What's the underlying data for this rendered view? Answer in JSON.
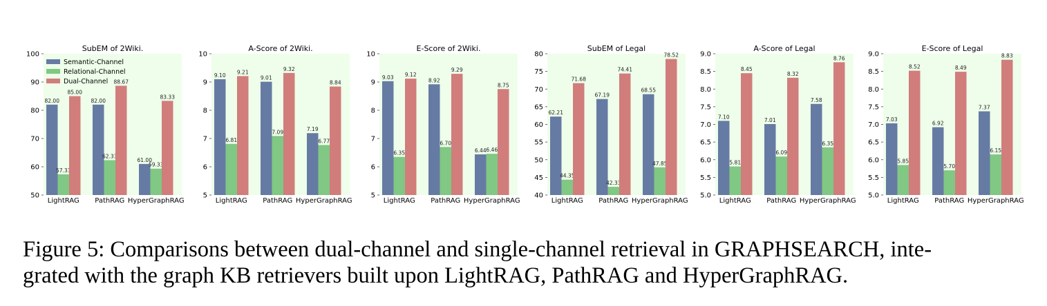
{
  "colors": {
    "semantic": "#667ba3",
    "relational": "#80c883",
    "dual": "#d17d7c",
    "plot_bg": "#eefeea"
  },
  "legend": {
    "placement": "top-left",
    "entries": [
      "Semantic-Channel",
      "Relational-Channel",
      "Dual-Channel"
    ]
  },
  "chart_data": [
    {
      "type": "bar",
      "title": "SubEM of 2Wiki.",
      "categories": [
        "LightRAG",
        "PathRAG",
        "HyperGraphRAG"
      ],
      "ylim": [
        50,
        100
      ],
      "yticks": [
        50,
        60,
        70,
        80,
        90,
        100
      ],
      "ytick_labels": [
        "50",
        "60",
        "70",
        "80",
        "90",
        "100"
      ],
      "series": [
        {
          "name": "Semantic-Channel",
          "values": [
            82.0,
            82.0,
            61.0
          ],
          "labels": [
            "82.00",
            "82.00",
            "61.00"
          ]
        },
        {
          "name": "Relational-Channel",
          "values": [
            57.33,
            62.33,
            59.33
          ],
          "labels": [
            "57.33",
            "62.33",
            "59.33"
          ]
        },
        {
          "name": "Dual-Channel",
          "values": [
            85.0,
            88.67,
            83.33
          ],
          "labels": [
            "85.00",
            "88.67",
            "83.33"
          ]
        }
      ]
    },
    {
      "type": "bar",
      "title": "A-Score of 2Wiki.",
      "categories": [
        "LightRAG",
        "PathRAG",
        "HyperGraphRAG"
      ],
      "ylim": [
        5,
        10
      ],
      "yticks": [
        5,
        6,
        7,
        8,
        9,
        10
      ],
      "ytick_labels": [
        "5",
        "6",
        "7",
        "8",
        "9",
        "10"
      ],
      "series": [
        {
          "name": "Semantic-Channel",
          "values": [
            9.1,
            9.01,
            7.19
          ],
          "labels": [
            "9.10",
            "9.01",
            "7.19"
          ]
        },
        {
          "name": "Relational-Channel",
          "values": [
            6.81,
            7.09,
            6.77
          ],
          "labels": [
            "6.81",
            "7.09",
            "6.77"
          ]
        },
        {
          "name": "Dual-Channel",
          "values": [
            9.21,
            9.32,
            8.84
          ],
          "labels": [
            "9.21",
            "9.32",
            "8.84"
          ]
        }
      ]
    },
    {
      "type": "bar",
      "title": "E-Score of 2Wiki.",
      "categories": [
        "LightRAG",
        "PathRAG",
        "HyperGraphRAG"
      ],
      "ylim": [
        5,
        10
      ],
      "yticks": [
        5,
        6,
        7,
        8,
        9,
        10
      ],
      "ytick_labels": [
        "5",
        "6",
        "7",
        "8",
        "9",
        "10"
      ],
      "series": [
        {
          "name": "Semantic-Channel",
          "values": [
            9.03,
            8.92,
            6.44
          ],
          "labels": [
            "9.03",
            "8.92",
            "6.44"
          ]
        },
        {
          "name": "Relational-Channel",
          "values": [
            6.35,
            6.7,
            6.46
          ],
          "labels": [
            "6.35",
            "6.70",
            "6.46"
          ]
        },
        {
          "name": "Dual-Channel",
          "values": [
            9.12,
            9.29,
            8.75
          ],
          "labels": [
            "9.12",
            "9.29",
            "8.75"
          ]
        }
      ]
    },
    {
      "type": "bar",
      "title": "SubEM of Legal",
      "categories": [
        "LightRAG",
        "PathRAG",
        "HyperGraphRAG"
      ],
      "ylim": [
        40,
        80
      ],
      "yticks": [
        40,
        45,
        50,
        55,
        60,
        65,
        70,
        75,
        80
      ],
      "ytick_labels": [
        "40",
        "45",
        "50",
        "55",
        "60",
        "65",
        "70",
        "75",
        "80"
      ],
      "series": [
        {
          "name": "Semantic-Channel",
          "values": [
            62.21,
            67.19,
            68.55
          ],
          "labels": [
            "62.21",
            "67.19",
            "68.55"
          ]
        },
        {
          "name": "Relational-Channel",
          "values": [
            44.35,
            42.33,
            47.85
          ],
          "labels": [
            "44.35",
            "42.33",
            "47.85"
          ]
        },
        {
          "name": "Dual-Channel",
          "values": [
            71.68,
            74.41,
            78.52
          ],
          "labels": [
            "71.68",
            "74.41",
            "78.52"
          ]
        }
      ]
    },
    {
      "type": "bar",
      "title": "A-Score of Legal",
      "categories": [
        "LightRAG",
        "PathRAG",
        "HyperGraphRAG"
      ],
      "ylim": [
        5,
        9
      ],
      "yticks": [
        5.0,
        5.5,
        6.0,
        6.5,
        7.0,
        7.5,
        8.0,
        8.5,
        9.0
      ],
      "ytick_labels": [
        "5.0",
        "5.5",
        "6.0",
        "6.5",
        "7.0",
        "7.5",
        "8.0",
        "8.5",
        "9.0"
      ],
      "series": [
        {
          "name": "Semantic-Channel",
          "values": [
            7.1,
            7.01,
            7.58
          ],
          "labels": [
            "7.10",
            "7.01",
            "7.58"
          ]
        },
        {
          "name": "Relational-Channel",
          "values": [
            5.81,
            6.09,
            6.35
          ],
          "labels": [
            "5.81",
            "6.09",
            "6.35"
          ]
        },
        {
          "name": "Dual-Channel",
          "values": [
            8.45,
            8.32,
            8.76
          ],
          "labels": [
            "8.45",
            "8.32",
            "8.76"
          ]
        }
      ]
    },
    {
      "type": "bar",
      "title": "E-Score of Legal",
      "categories": [
        "LightRAG",
        "PathRAG",
        "HyperGraphRAG"
      ],
      "ylim": [
        5,
        9
      ],
      "yticks": [
        5.0,
        5.5,
        6.0,
        6.5,
        7.0,
        7.5,
        8.0,
        8.5,
        9.0
      ],
      "ytick_labels": [
        "5.0",
        "5.5",
        "6.0",
        "6.5",
        "7.0",
        "7.5",
        "8.0",
        "8.5",
        "9.0"
      ],
      "series": [
        {
          "name": "Semantic-Channel",
          "values": [
            7.03,
            6.92,
            7.37
          ],
          "labels": [
            "7.03",
            "6.92",
            "7.37"
          ]
        },
        {
          "name": "Relational-Channel",
          "values": [
            5.85,
            5.7,
            6.15
          ],
          "labels": [
            "5.85",
            "5.70",
            "6.15"
          ]
        },
        {
          "name": "Dual-Channel",
          "values": [
            8.52,
            8.49,
            8.83
          ],
          "labels": [
            "8.52",
            "8.49",
            "8.83"
          ]
        }
      ]
    }
  ],
  "caption": {
    "line1": "Figure 5: Comparisons between dual-channel and single-channel retrieval in GRAPHSEARCH, inte-",
    "line2": "grated with the graph KB retrievers built upon LightRAG, PathRAG and HyperGraphRAG."
  }
}
